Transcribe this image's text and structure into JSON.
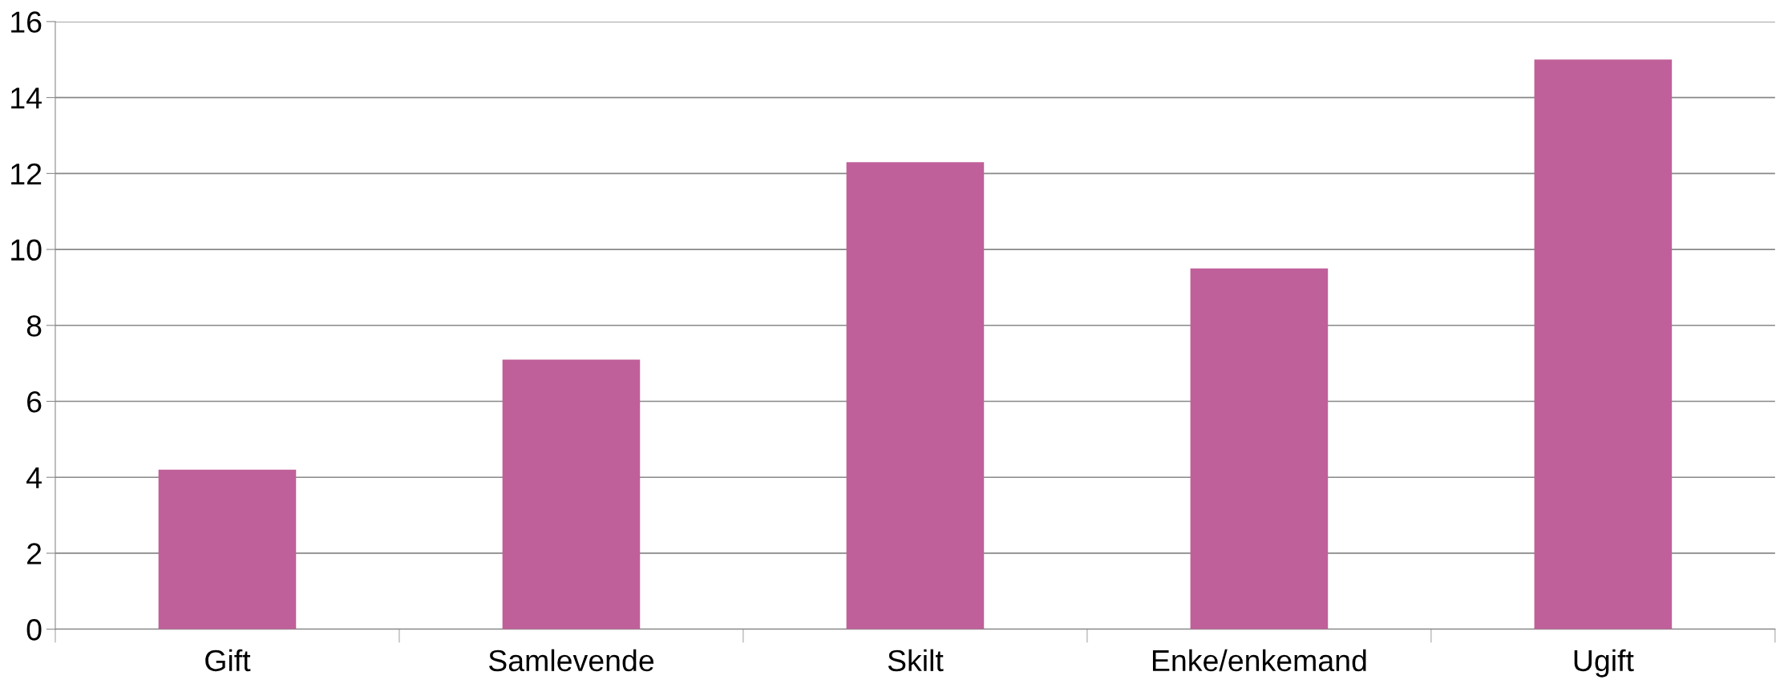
{
  "chart_data": {
    "type": "bar",
    "categories": [
      "Gift",
      "Samlevende",
      "Skilt",
      "Enke/enkemand",
      "Ugift"
    ],
    "values": [
      4.2,
      7.1,
      12.3,
      9.5,
      15.0
    ],
    "color": "#c0609a",
    "ylim": [
      0,
      16
    ],
    "yticks": [
      0,
      2,
      4,
      6,
      8,
      10,
      12,
      14,
      16
    ],
    "grid": "y",
    "legend": false
  }
}
